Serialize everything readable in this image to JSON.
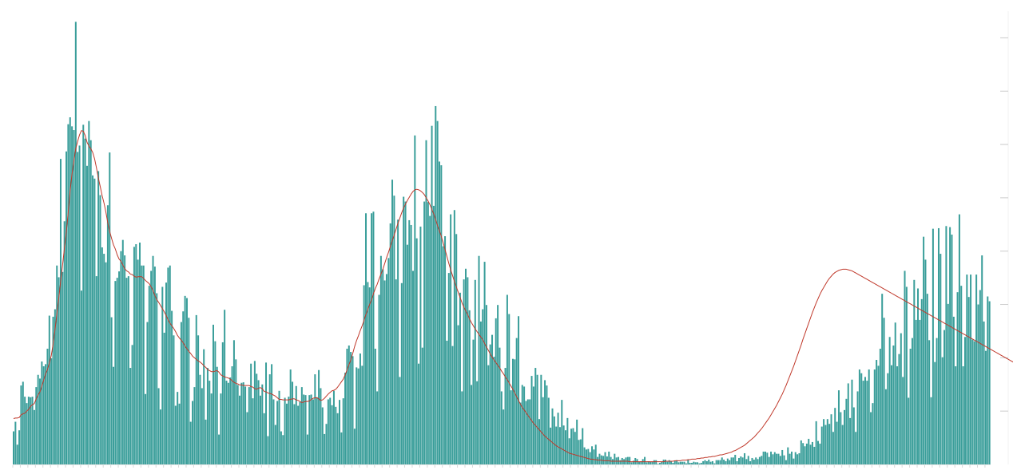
{
  "chart_data": {
    "type": "bar",
    "title": "",
    "xlabel": "",
    "ylabel": "",
    "ylim": [
      0,
      8.5
    ],
    "grid": false,
    "legend": "none",
    "colors": {
      "bar": "#3a9e9a",
      "line": "#c0392b",
      "tick": "#cccccc"
    },
    "series": [
      {
        "kind": "bar",
        "values": [
          0.62,
          0.8,
          0.37,
          0.64,
          1.48,
          1.55,
          1.27,
          1.15,
          1.27,
          1.26,
          1.27,
          1.02,
          1.45,
          1.68,
          1.61,
          1.93,
          1.84,
          1.88,
          2.17,
          2.79,
          1.99,
          2.77,
          2.91,
          3.73,
          3.51,
          5.73,
          3.61,
          4.56,
          5.87,
          6.38,
          6.51,
          6.34,
          6.27,
          8.3,
          5.86,
          5.98,
          3.26,
          6.37,
          6.11,
          5.6,
          6.44,
          6.08,
          5.42,
          5.36,
          3.53,
          5.5,
          5.05,
          4.07,
          3.95,
          3.79,
          4.86,
          5.85,
          2.76,
          1.83,
          3.44,
          3.5,
          3.62,
          4.0,
          4.21,
          3.92,
          3.5,
          3.53,
          1.81,
          2.24,
          4.08,
          4.13,
          3.84,
          4.16,
          3.73,
          3.73,
          1.32,
          2.67,
          3.35,
          3.63,
          3.91,
          3.71,
          3.21,
          1.43,
          1.03,
          3.33,
          2.47,
          3.41,
          3.69,
          3.73,
          2.88,
          2.42,
          1.1,
          1.36,
          1.14,
          2.67,
          2.87,
          3.16,
          3.12,
          2.75,
          0.8,
          1.19,
          1.45,
          2.8,
          2.42,
          1.68,
          1.43,
          2.16,
          0.84,
          1.81,
          1.57,
          1.33,
          2.62,
          2.31,
          1.83,
          0.56,
          1.33,
          2.29,
          2.9,
          1.57,
          1.53,
          1.63,
          1.84,
          2.33,
          1.97,
          1.49,
          1.29,
          1.53,
          1.54,
          1.46,
          0.98,
          1.45,
          1.89,
          1.24,
          1.94,
          1.7,
          1.58,
          1.29,
          1.5,
          0.96,
          1.91,
          0.53,
          1.69,
          1.88,
          1.22,
          0.74,
          1.19,
          1.38,
          0.62,
          0.55,
          1.25,
          1.14,
          1.27,
          1.78,
          1.55,
          1.13,
          1.47,
          1.1,
          1.17,
          1.45,
          1.31,
          1.3,
          0.56,
          1.3,
          1.31,
          1.22,
          1.69,
          1.26,
          1.77,
          1.43,
          1.07,
          0.57,
          0.76,
          1.22,
          1.25,
          1.11,
          1.38,
          1.08,
          0.96,
          1.21,
          0.6,
          1.24,
          1.72,
          2.17,
          2.23,
          2.11,
          2.03,
          0.67,
          1.82,
          1.8,
          2.08,
          1.85,
          3.36,
          4.71,
          3.42,
          3.32,
          4.71,
          4.74,
          2.17,
          1.37,
          3.18,
          3.91,
          3.66,
          3.45,
          3.57,
          3.87,
          4.52,
          5.34,
          5.04,
          3.47,
          4.59,
          1.64,
          3.4,
          5.02,
          4.93,
          4.12,
          4.58,
          4.49,
          3.63,
          6.17,
          4.24,
          1.89,
          4.46,
          2.19,
          4.93,
          6.08,
          4.92,
          4.66,
          6.35,
          4.85,
          6.72,
          6.44,
          5.68,
          5.61,
          4.09,
          4.28,
          2.32,
          3.59,
          4.69,
          2.22,
          4.77,
          4.32,
          2.61,
          3.22,
          1.37,
          3.47,
          3.67,
          3.51,
          2.89,
          1.49,
          2.34,
          3.46,
          1.56,
          3.91,
          2.68,
          2.91,
          3.8,
          2.99,
          1.86,
          2.25,
          2.43,
          2.02,
          2.74,
          2.99,
          2.19,
          1.37,
          1.03,
          1.81,
          3.18,
          2.82,
          1.39,
          1.98,
          1.97,
          2.37,
          2.78,
          1.16,
          1.49,
          1.46,
          1.19,
          1.22,
          1.22,
          1.66,
          1.46,
          1.81,
          1.68,
          0.85,
          1.68,
          1.26,
          1.58,
          1.48,
          1.25,
          0.69,
          1.05,
          0.9,
          0.71,
          0.97,
          0.7,
          1.21,
          0.73,
          0.64,
          0.87,
          0.49,
          0.67,
          0.68,
          0.61,
          0.84,
          0.46,
          0.47,
          0.68,
          0.32,
          0.28,
          0.29,
          0.23,
          0.34,
          0.28,
          0.37,
          0.14,
          0.2,
          0.17,
          0.16,
          0.23,
          0.15,
          0.24,
          0.14,
          0.1,
          0.2,
          0.13,
          0.14,
          0.08,
          0.12,
          0.1,
          0.13,
          0.14,
          0.14,
          0.04,
          0.07,
          0.12,
          0.1,
          0.05,
          0.06,
          0.1,
          0.14,
          0.04,
          0.06,
          0.05,
          0.05,
          0.08,
          0.08,
          0.01,
          0.03,
          0.05,
          0.09,
          0.09,
          0.05,
          0.08,
          0.06,
          0.03,
          0.07,
          0.08,
          0.04,
          0.05,
          0.05,
          0.05,
          0.02,
          0.09,
          0.03,
          0.03,
          0.05,
          0.04,
          0.04,
          0.02,
          0.03,
          0.06,
          0.08,
          0.06,
          0.09,
          0.05,
          0.06,
          0.02,
          0.08,
          0.08,
          0.08,
          0.13,
          0.09,
          0.06,
          0.11,
          0.08,
          0.13,
          0.13,
          0.18,
          0.06,
          0.12,
          0.15,
          0.13,
          0.21,
          0.1,
          0.16,
          0.06,
          0.12,
          0.09,
          0.13,
          0.1,
          0.14,
          0.16,
          0.24,
          0.24,
          0.22,
          0.14,
          0.24,
          0.19,
          0.23,
          0.2,
          0.2,
          0.16,
          0.27,
          0.17,
          0.08,
          0.32,
          0.2,
          0.24,
          0.11,
          0.23,
          0.19,
          0.21,
          0.45,
          0.4,
          0.34,
          0.39,
          0.48,
          0.37,
          0.42,
          0.33,
          0.81,
          0.44,
          0.39,
          0.71,
          0.85,
          0.74,
          0.85,
          0.76,
          0.94,
          0.61,
          1.06,
          0.8,
          1.39,
          0.98,
          0.74,
          1.02,
          1.23,
          1.52,
          0.87,
          1.59,
          1.07,
          0.61,
          1.37,
          1.78,
          1.71,
          1.57,
          1.64,
          1.57,
          1.78,
          0.98,
          1.15,
          1.78,
          1.96,
          1.85,
          2.17,
          3.2,
          2.75,
          1.41,
          1.71,
          2.39,
          1.86,
          2.23,
          2.66,
          1.84,
          2.07,
          2.46,
          1.64,
          3.63,
          3.33,
          1.25,
          2.17,
          2.37,
          3.46,
          2.71,
          3.3,
          2.71,
          3.1,
          4.27,
          3.84,
          3.2,
          2.33,
          1.26,
          4.42,
          1.92,
          2.37,
          4.43,
          3.95,
          2.01,
          2.52,
          4.47,
          3.01,
          4.45,
          4.31,
          2.77,
          1.84,
          3.23,
          4.69,
          3.35,
          1.84,
          2.39,
          3.56,
          3.14,
          3.56,
          2.34,
          2.31,
          3.56,
          3.0,
          3.27,
          3.92,
          2.68,
          2.13,
          3.15,
          3.06
        ]
      },
      {
        "kind": "line",
        "values": [
          0.86,
          0.87,
          0.87,
          0.88,
          0.93,
          0.95,
          0.96,
          1.0,
          1.03,
          1.09,
          1.12,
          1.14,
          1.23,
          1.3,
          1.36,
          1.47,
          1.58,
          1.7,
          1.78,
          1.9,
          2.04,
          2.26,
          2.53,
          2.83,
          3.12,
          3.44,
          3.74,
          4.06,
          4.36,
          4.73,
          5.13,
          5.44,
          5.69,
          5.92,
          6.06,
          6.18,
          6.26,
          6.25,
          6.17,
          6.04,
          5.97,
          5.92,
          5.85,
          5.73,
          5.56,
          5.37,
          5.21,
          5.04,
          4.9,
          4.73,
          4.53,
          4.37,
          4.24,
          4.12,
          4.04,
          3.93,
          3.85,
          3.81,
          3.74,
          3.67,
          3.63,
          3.61,
          3.57,
          3.56,
          3.53,
          3.51,
          3.52,
          3.52,
          3.52,
          3.49,
          3.45,
          3.42,
          3.39,
          3.33,
          3.26,
          3.17,
          3.09,
          3.04,
          2.98,
          2.92,
          2.86,
          2.79,
          2.71,
          2.65,
          2.6,
          2.55,
          2.49,
          2.42,
          2.37,
          2.33,
          2.28,
          2.22,
          2.17,
          2.12,
          2.08,
          2.03,
          2.0,
          1.97,
          1.94,
          1.92,
          1.89,
          1.85,
          1.82,
          1.78,
          1.76,
          1.74,
          1.74,
          1.75,
          1.76,
          1.73,
          1.68,
          1.66,
          1.64,
          1.63,
          1.62,
          1.6,
          1.57,
          1.54,
          1.52,
          1.51,
          1.49,
          1.49,
          1.48,
          1.48,
          1.48,
          1.48,
          1.46,
          1.45,
          1.42,
          1.41,
          1.43,
          1.44,
          1.42,
          1.37,
          1.36,
          1.34,
          1.33,
          1.32,
          1.3,
          1.28,
          1.25,
          1.22,
          1.22,
          1.21,
          1.21,
          1.21,
          1.21,
          1.22,
          1.23,
          1.23,
          1.21,
          1.2,
          1.18,
          1.16,
          1.17,
          1.18,
          1.18,
          1.19,
          1.22,
          1.24,
          1.25,
          1.25,
          1.23,
          1.2,
          1.21,
          1.24,
          1.28,
          1.32,
          1.35,
          1.38,
          1.39,
          1.41,
          1.45,
          1.5,
          1.55,
          1.6,
          1.68,
          1.77,
          1.87,
          1.96,
          2.08,
          2.21,
          2.32,
          2.41,
          2.51,
          2.6,
          2.7,
          2.81,
          2.91,
          3.0,
          3.09,
          3.2,
          3.3,
          3.38,
          3.48,
          3.57,
          3.66,
          3.77,
          3.88,
          3.98,
          4.09,
          4.2,
          4.3,
          4.41,
          4.52,
          4.62,
          4.72,
          4.81,
          4.88,
          4.95,
          5.01,
          5.07,
          5.12,
          5.15,
          5.16,
          5.15,
          5.13,
          5.1,
          5.06,
          5.0,
          4.94,
          4.87,
          4.78,
          4.7,
          4.59,
          4.48,
          4.38,
          4.28,
          4.16,
          4.03,
          3.9,
          3.77,
          3.65,
          3.54,
          3.43,
          3.33,
          3.23,
          3.13,
          3.03,
          2.95,
          2.88,
          2.81,
          2.73,
          2.66,
          2.6,
          2.54,
          2.49,
          2.44,
          2.39,
          2.34,
          2.27,
          2.2,
          2.14,
          2.07,
          2.01,
          1.96,
          1.91,
          1.86,
          1.81,
          1.75,
          1.7,
          1.64,
          1.59,
          1.53,
          1.47,
          1.41,
          1.34,
          1.27,
          1.2,
          1.13,
          1.07,
          1.02,
          0.97,
          0.92,
          0.87,
          0.82,
          0.77,
          0.73,
          0.69,
          0.65,
          0.61,
          0.57,
          0.53,
          0.5,
          0.47,
          0.44,
          0.41,
          0.38,
          0.35,
          0.33,
          0.31,
          0.29,
          0.27,
          0.25,
          0.23,
          0.21,
          0.2,
          0.19,
          0.18,
          0.17,
          0.16,
          0.15,
          0.14,
          0.13,
          0.12,
          0.11,
          0.1,
          0.1,
          0.09,
          0.09,
          0.08,
          0.08,
          0.08,
          0.07,
          0.07,
          0.07,
          0.07,
          0.06,
          0.06,
          0.06,
          0.06,
          0.06,
          0.06,
          0.06,
          0.06,
          0.06,
          0.06,
          0.05,
          0.05,
          0.05,
          0.05,
          0.05,
          0.05,
          0.05,
          0.05,
          0.05,
          0.05,
          0.05,
          0.05,
          0.05,
          0.05,
          0.05,
          0.05,
          0.05,
          0.05,
          0.05,
          0.06,
          0.06,
          0.06,
          0.06,
          0.06,
          0.07,
          0.07,
          0.07,
          0.07,
          0.08,
          0.08,
          0.08,
          0.09,
          0.09,
          0.1,
          0.1,
          0.1,
          0.11,
          0.11,
          0.12,
          0.12,
          0.13,
          0.13,
          0.14,
          0.14,
          0.15,
          0.15,
          0.16,
          0.17,
          0.18,
          0.18,
          0.19,
          0.2,
          0.21,
          0.22,
          0.23,
          0.25,
          0.26,
          0.28,
          0.3,
          0.32,
          0.34,
          0.36,
          0.39,
          0.42,
          0.45,
          0.48,
          0.51,
          0.55,
          0.59,
          0.63,
          0.67,
          0.72,
          0.77,
          0.82,
          0.87,
          0.93,
          0.99,
          1.05,
          1.11,
          1.18,
          1.25,
          1.32,
          1.4,
          1.48,
          1.57,
          1.66,
          1.75,
          1.84,
          1.94,
          2.04,
          2.14,
          2.24,
          2.35,
          2.45,
          2.55,
          2.65,
          2.75,
          2.85,
          2.94,
          3.03,
          3.11,
          3.19,
          3.26,
          3.32,
          3.38,
          3.44,
          3.49,
          3.53,
          3.57,
          3.6,
          3.62,
          3.64,
          3.65,
          3.66,
          3.66,
          3.66,
          3.65,
          3.64,
          3.63,
          3.61,
          3.59,
          3.57,
          3.55,
          3.53,
          3.51,
          3.49,
          3.47,
          3.45,
          3.43,
          3.41,
          3.39,
          3.37,
          3.35,
          3.33,
          3.31,
          3.29,
          3.27,
          3.25,
          3.23,
          3.21,
          3.19,
          3.17,
          3.15,
          3.13,
          3.11,
          3.09,
          3.07,
          3.05,
          3.03,
          3.01,
          2.99,
          2.97,
          2.95,
          2.93,
          2.91,
          2.89,
          2.87,
          2.85,
          2.83,
          2.81,
          2.79,
          2.77,
          2.75,
          2.73,
          2.71,
          2.69,
          2.67,
          2.65,
          2.63,
          2.61,
          2.59,
          2.57,
          2.55,
          2.53,
          2.51,
          2.49,
          2.47,
          2.45,
          2.43,
          2.41,
          2.39,
          2.37,
          2.35,
          2.33,
          2.31,
          2.29,
          2.27,
          2.25,
          2.23,
          2.21,
          2.19,
          2.17,
          2.15,
          2.13,
          2.11,
          2.09,
          2.07,
          2.05,
          2.03,
          2.01,
          1.99,
          1.97,
          1.95,
          1.93,
          1.91
        ]
      }
    ]
  }
}
